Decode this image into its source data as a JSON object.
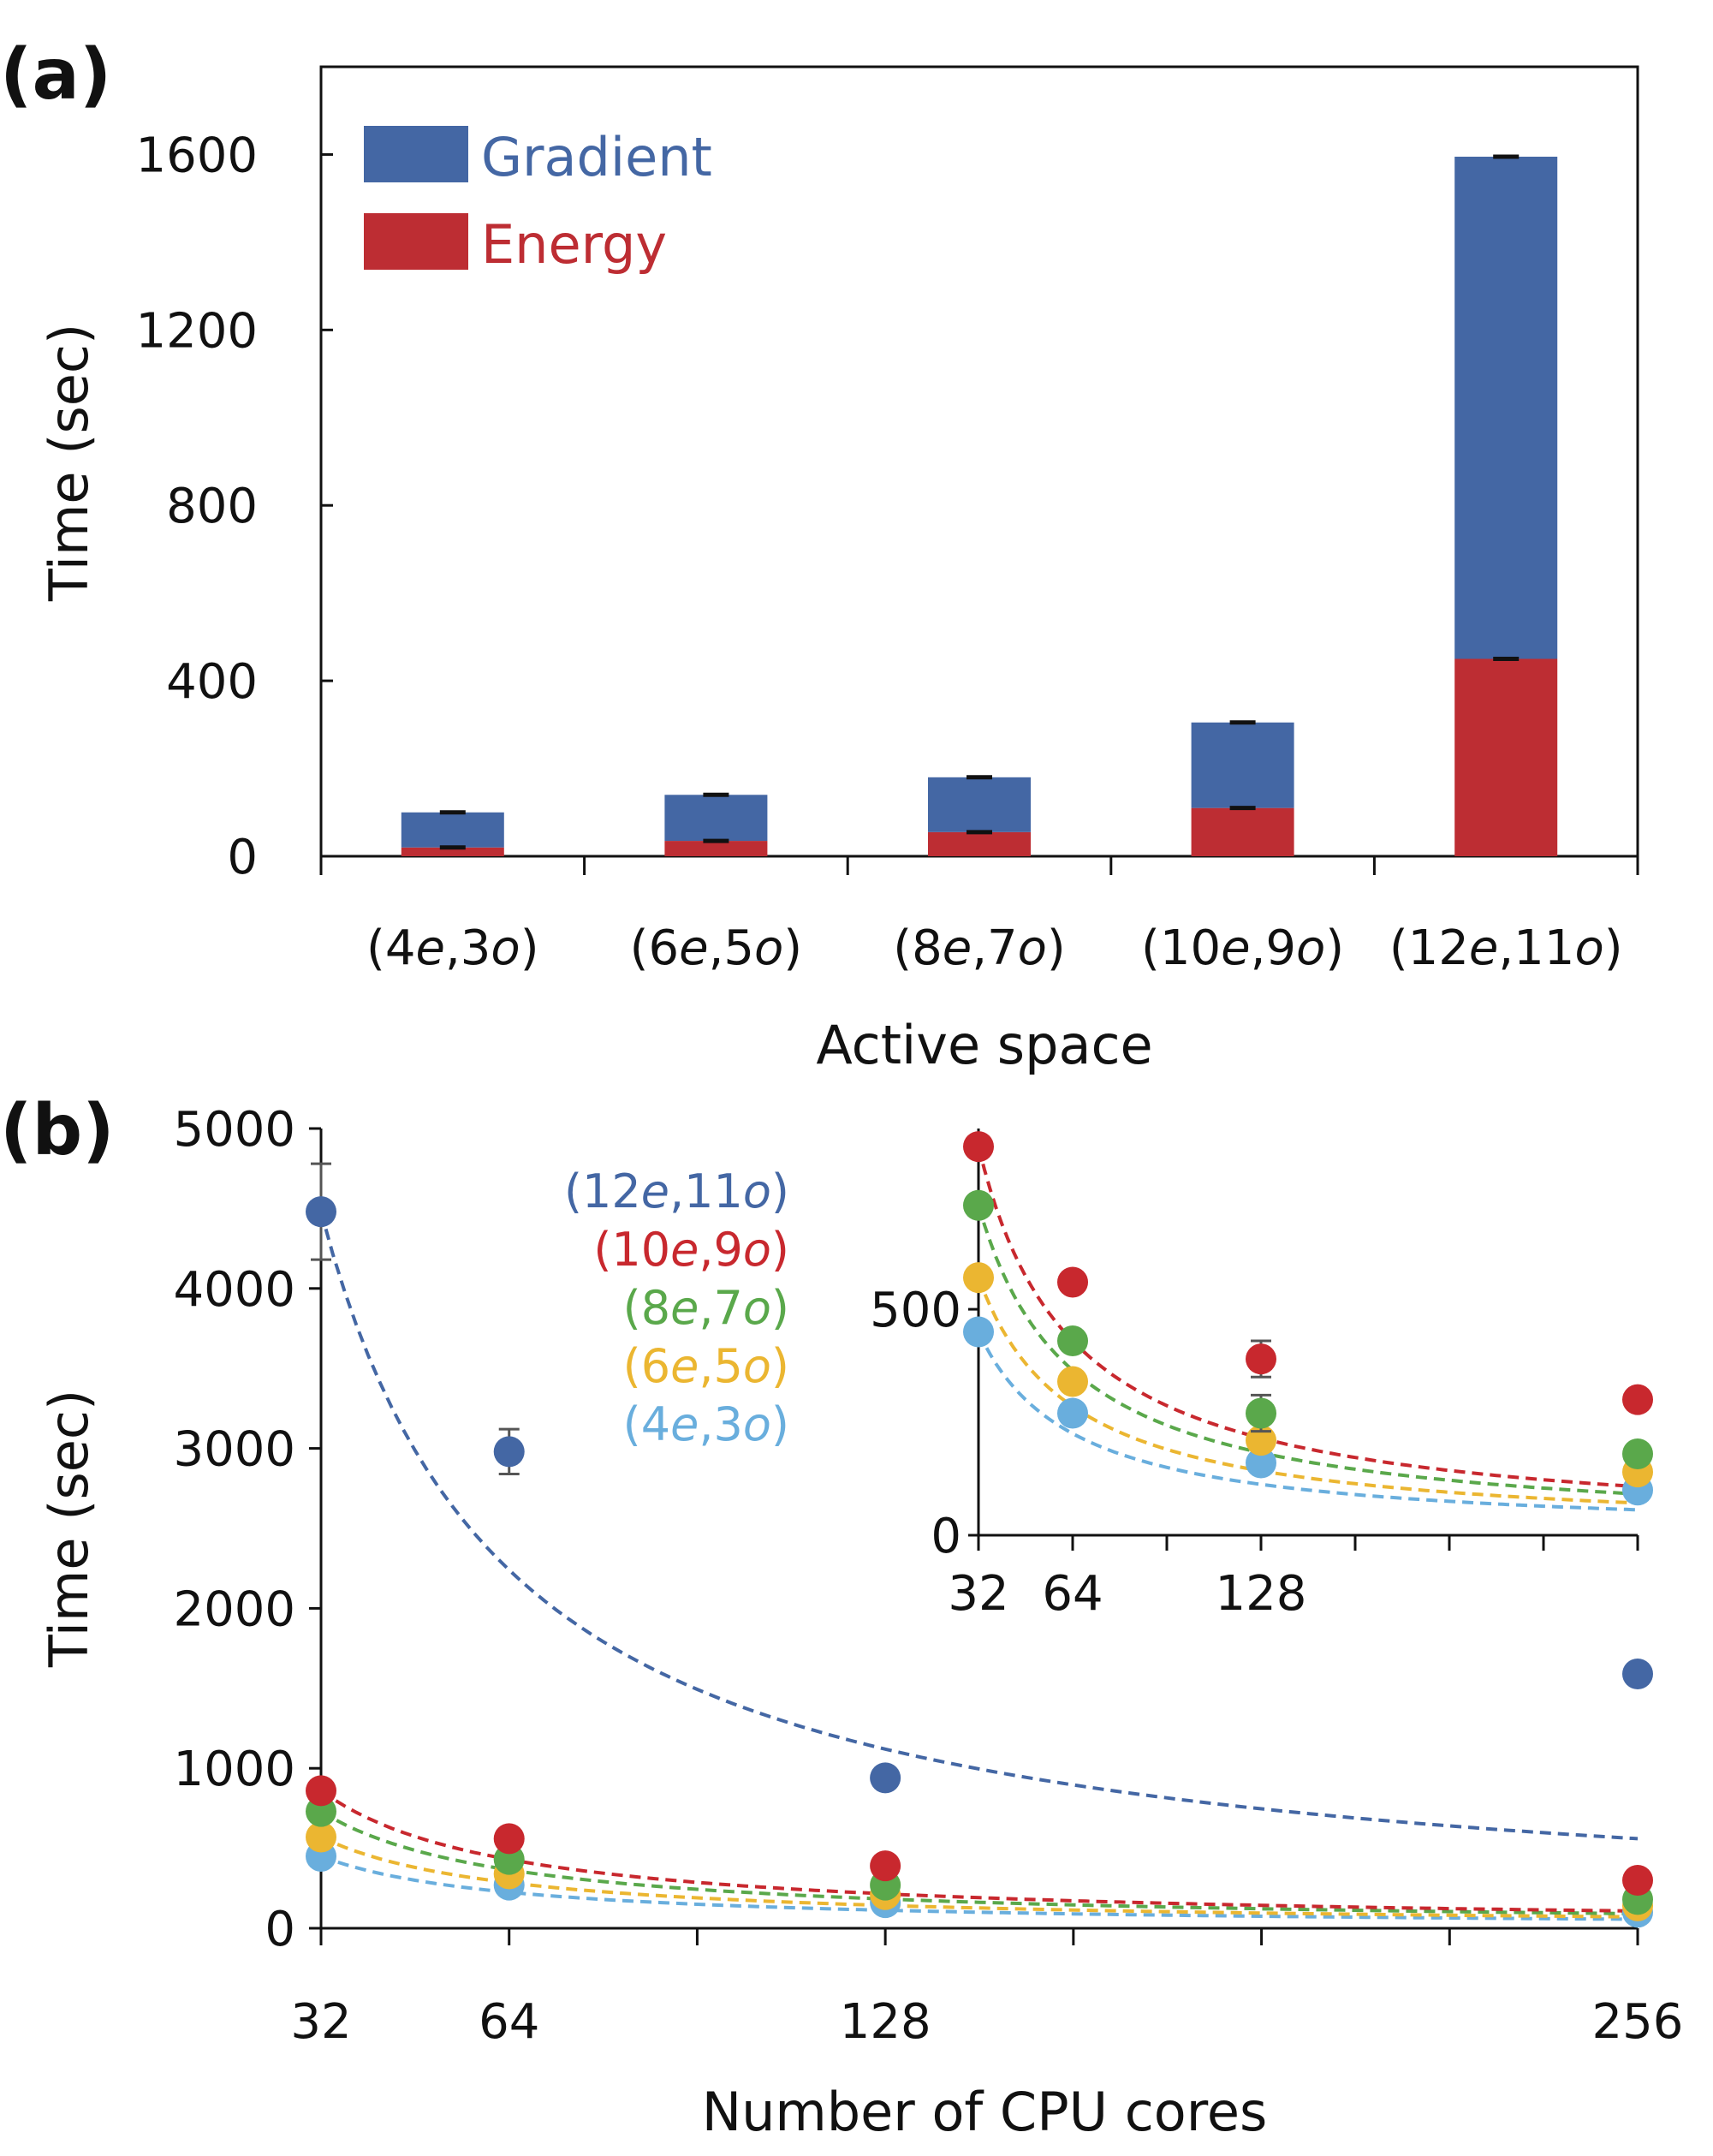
{
  "panel_a_label": "(a)",
  "panel_b_label": "(b)",
  "colors": {
    "gradient": "#4467a4",
    "energy": "#bd2d33",
    "s12e11o": "#4467a4",
    "s10e9o": "#c8282e",
    "s8e7o": "#5aa84b",
    "s6e5o": "#ebb631",
    "s4e3o": "#69aedd"
  },
  "chart_data": [
    {
      "type": "bar",
      "stacked": true,
      "title": "",
      "xlabel": "Active space",
      "ylabel": "Time (sec)",
      "ylim": [
        0,
        1800
      ],
      "yticks": [
        0,
        400,
        800,
        1200,
        1600
      ],
      "categories": [
        {
          "pre": "(4",
          "a": "e",
          "mid": ",3",
          "b": "o",
          "post": ")"
        },
        {
          "pre": "(6",
          "a": "e",
          "mid": ",5",
          "b": "o",
          "post": ")"
        },
        {
          "pre": "(8",
          "a": "e",
          "mid": ",7",
          "b": "o",
          "post": ")"
        },
        {
          "pre": "(10",
          "a": "e",
          "mid": ",9",
          "b": "o",
          "post": ")"
        },
        {
          "pre": "(12",
          "a": "e",
          "mid": ",11",
          "b": "o",
          "post": ")"
        }
      ],
      "series": [
        {
          "name": "Energy",
          "values": [
            20,
            35,
            55,
            110,
            450
          ]
        },
        {
          "name": "Gradient",
          "values": [
            80,
            105,
            125,
            195,
            1145
          ]
        }
      ],
      "legend": [
        "Gradient",
        "Energy"
      ],
      "legend_position": "top-left"
    },
    {
      "type": "scatter",
      "xlabel": "Number of CPU cores",
      "ylabel": "Time (sec)",
      "x": [
        32,
        64,
        128,
        256
      ],
      "xlim": [
        32,
        256
      ],
      "ylim": [
        0,
        5000
      ],
      "yticks": [
        0,
        1000,
        2000,
        3000,
        4000,
        5000
      ],
      "xticklabels": [
        "32",
        "64",
        "128",
        "256"
      ],
      "series": [
        {
          "name": "(12e,11o)",
          "key": "s12e11o",
          "label": {
            "pre": "(12",
            "a": "e",
            "mid": ",11",
            "b": "o",
            "post": ")"
          },
          "values": [
            4480,
            2980,
            940,
            1590
          ],
          "errors": [
            300,
            140,
            0,
            0
          ],
          "fit": 4480
        },
        {
          "name": "(10e,9o)",
          "key": "s10e9o",
          "label": {
            "pre": "(10",
            "a": "e",
            "mid": ",9",
            "b": "o",
            "post": ")"
          },
          "values": [
            860,
            560,
            390,
            300
          ],
          "errors": [
            0,
            0,
            40,
            0
          ],
          "fit": 860
        },
        {
          "name": "(8e,7o)",
          "key": "s8e7o",
          "label": {
            "pre": "(8",
            "a": "e",
            "mid": ",7",
            "b": "o",
            "post": ")"
          },
          "values": [
            730,
            430,
            270,
            180
          ],
          "errors": [
            0,
            0,
            40,
            0
          ],
          "fit": 730
        },
        {
          "name": "(6e,5o)",
          "key": "s6e5o",
          "label": {
            "pre": "(6",
            "a": "e",
            "mid": ",5",
            "b": "o",
            "post": ")"
          },
          "values": [
            570,
            340,
            210,
            140
          ],
          "errors": [
            0,
            0,
            0,
            0
          ],
          "fit": 570
        },
        {
          "name": "(4e,3o)",
          "key": "s4e3o",
          "label": {
            "pre": "(4",
            "a": "e",
            "mid": ",3",
            "b": "o",
            "post": ")"
          },
          "values": [
            450,
            270,
            160,
            100
          ],
          "errors": [
            0,
            0,
            0,
            0
          ],
          "fit": 450
        }
      ],
      "inset": {
        "ylim": [
          0,
          900
        ],
        "yticks": [
          0,
          500
        ],
        "xticklabels": [
          "32",
          "64",
          "128"
        ]
      }
    }
  ]
}
